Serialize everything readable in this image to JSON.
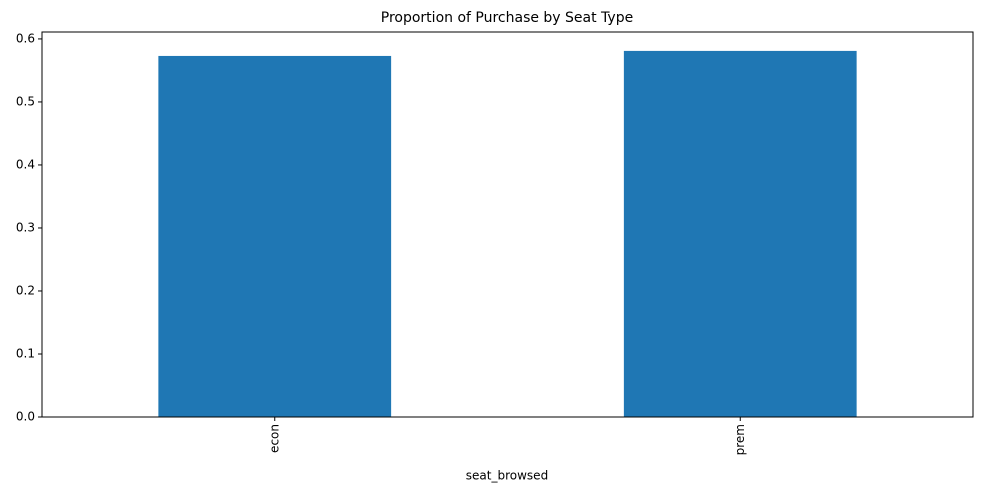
{
  "chart_data": {
    "type": "bar",
    "title": "Proportion of Purchase by Seat Type",
    "x_label": "seat_browsed",
    "categories": [
      "econ",
      "prem"
    ],
    "values": [
      0.573,
      0.581
    ],
    "color": "#1f77b4",
    "ylim": [
      0,
      0.611
    ],
    "yticks": [
      {
        "value": 0,
        "label": "0.0"
      },
      0.1,
      0.2,
      0.3,
      0.4,
      0.5,
      0.6
    ],
    "grid": false
  }
}
